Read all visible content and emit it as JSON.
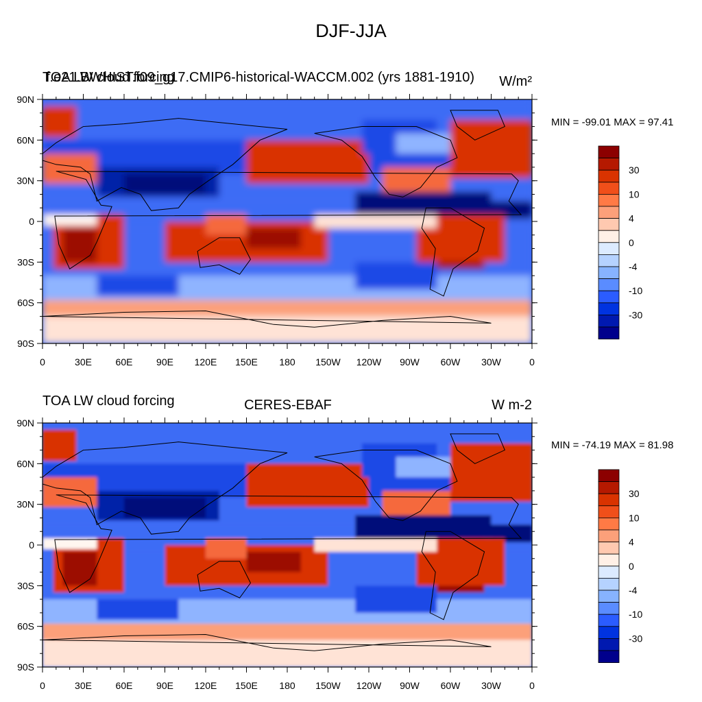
{
  "main_title": "DJF-JJA",
  "panels": [
    {
      "left_title": "TOA LW cloud forcing",
      "overlap_title": "f.e21.BWHIST.f09_g17.CMIP6-historical-WACCM.002 (yrs 1881-1910)",
      "center_title": "",
      "units": "W/m²",
      "min_max": "MIN = -99.01 MAX =  97.41",
      "min": -99.01,
      "max": 97.41
    },
    {
      "left_title": "TOA LW cloud forcing",
      "overlap_title": "",
      "center_title": "CERES-EBAF",
      "units": "W m-2",
      "min_max": "MIN = -74.19 MAX =  81.98",
      "min": -74.19,
      "max": 81.98
    }
  ],
  "lat_labels": [
    "90N",
    "60N",
    "30N",
    "0",
    "30S",
    "60S",
    "90S"
  ],
  "lon_labels": [
    "0",
    "30E",
    "60E",
    "90E",
    "120E",
    "150E",
    "180",
    "150W",
    "120W",
    "90W",
    "60W",
    "30W",
    "0"
  ],
  "colorbar_labels": [
    "30",
    "10",
    "4",
    "0",
    "-4",
    "-10",
    "-30"
  ],
  "colorbar_colors": [
    "#8c0000",
    "#b51900",
    "#d93300",
    "#f04f1a",
    "#ff7a45",
    "#fca07a",
    "#ffc9b0",
    "#fff0e6",
    "#dcebff",
    "#b5d2ff",
    "#87b3ff",
    "#5a8cff",
    "#2b5cff",
    "#0033e0",
    "#0019b0",
    "#00008c"
  ],
  "map_colors": {
    "deep_red": "#9c0a00",
    "red": "#d93300",
    "orange": "#f5693c",
    "salmon": "#fca07a",
    "pale": "#ffe3d6",
    "white": "#fff6f0",
    "pale_blue": "#d6e6ff",
    "light_blue": "#8fb4ff",
    "blue": "#3d6cf5",
    "mid_blue": "#1a48e6",
    "dark_blue": "#0020a8",
    "navy": "#000f7a"
  }
}
